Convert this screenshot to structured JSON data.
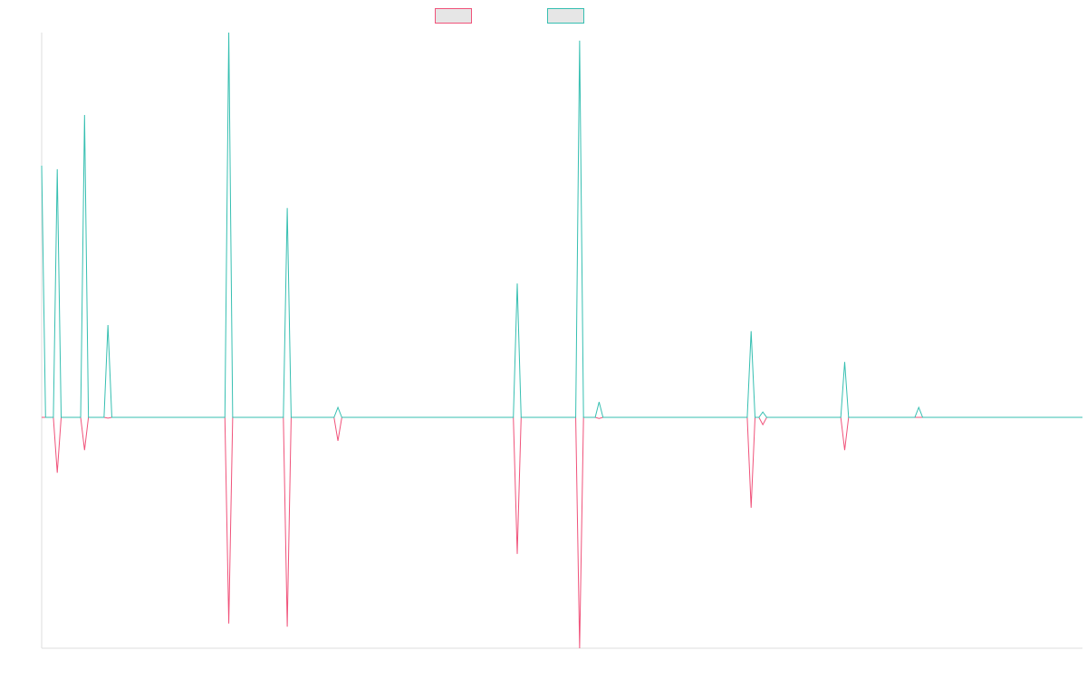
{
  "chart_data": {
    "type": "line",
    "x": [
      0,
      1,
      3,
      4,
      5,
      10,
      11,
      12,
      16,
      17,
      18,
      47,
      48,
      49,
      62,
      63,
      64,
      75,
      76,
      77,
      121,
      122,
      123,
      137,
      138,
      139,
      142,
      143,
      144,
      181,
      182,
      183,
      184,
      185,
      186,
      205,
      206,
      207,
      224,
      225,
      226,
      267
    ],
    "xlim": [
      0,
      267
    ],
    "ylim": [
      -60,
      100
    ],
    "series": [
      {
        "color": "#f0527a",
        "values": [
          0,
          0,
          0,
          -14.4,
          0,
          0,
          -8.5,
          0,
          0,
          -0.2,
          0,
          0,
          -53.6,
          0,
          0,
          -54.4,
          0,
          0,
          -6.1,
          0,
          0,
          -35.5,
          0,
          0,
          -60,
          0,
          0,
          -0.3,
          0,
          0,
          -23.5,
          0,
          0,
          -1.9,
          0,
          0,
          -8.5,
          0,
          0,
          0,
          0,
          0
        ]
      },
      {
        "color": "#36bfb1",
        "values": [
          65.4,
          0,
          0,
          64.5,
          0,
          0,
          78.6,
          0,
          0,
          24,
          0,
          0,
          100,
          0,
          0,
          54.4,
          0,
          0,
          2.6,
          0,
          0,
          34.8,
          0,
          0,
          97.9,
          0,
          0,
          4,
          0,
          0,
          22.4,
          0,
          0,
          1.4,
          0,
          0,
          14.4,
          0,
          0,
          2.6,
          0,
          0
        ]
      }
    ]
  }
}
